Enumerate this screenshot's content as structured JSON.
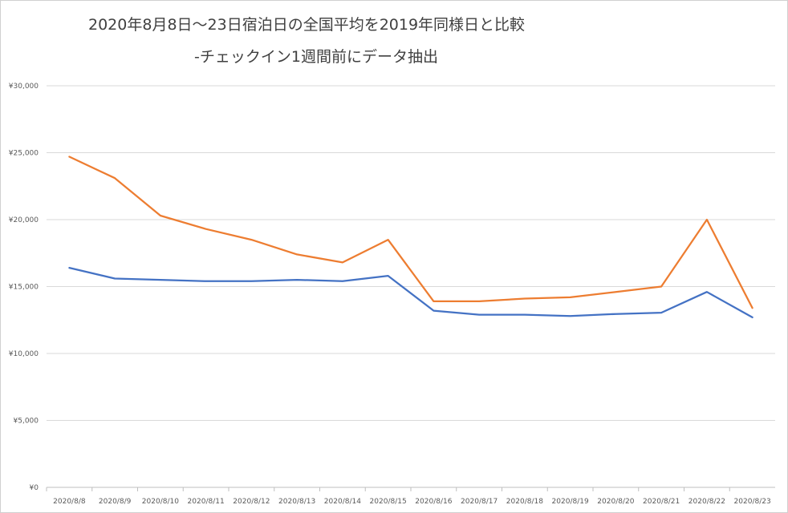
{
  "chart_data": {
    "type": "line",
    "title_lines": [
      "2020年8月8日〜23日宿泊日の全国平均を2019年同様日と比較",
      "-チェックイン1週間前にデータ抽出"
    ],
    "xlabel": "",
    "ylabel": "",
    "ylim": [
      0,
      30000
    ],
    "y_ticks": [
      0,
      5000,
      10000,
      15000,
      20000,
      25000,
      30000
    ],
    "y_tick_labels": [
      "¥0",
      "¥5,000",
      "¥10,000",
      "¥15,000",
      "¥20,000",
      "¥25,000",
      "¥30,000"
    ],
    "grid": true,
    "legend": "none",
    "categories": [
      "2020/8/8",
      "2020/8/9",
      "2020/8/10",
      "2020/8/11",
      "2020/8/12",
      "2020/8/13",
      "2020/8/14",
      "2020/8/15",
      "2020/8/16",
      "2020/8/17",
      "2020/8/18",
      "2020/8/19",
      "2020/8/20",
      "2020/8/21",
      "2020/8/22",
      "2020/8/23"
    ],
    "series": [
      {
        "color": "#4472c4",
        "values": [
          16400,
          15600,
          15500,
          15400,
          15400,
          15500,
          15400,
          15800,
          13200,
          12900,
          12900,
          12800,
          12950,
          13050,
          14600,
          12700
        ]
      },
      {
        "color": "#ed7d31",
        "values": [
          24700,
          23100,
          20300,
          19300,
          18500,
          17400,
          16800,
          18500,
          13900,
          13900,
          14100,
          14200,
          14600,
          15000,
          20000,
          13400
        ]
      }
    ]
  }
}
